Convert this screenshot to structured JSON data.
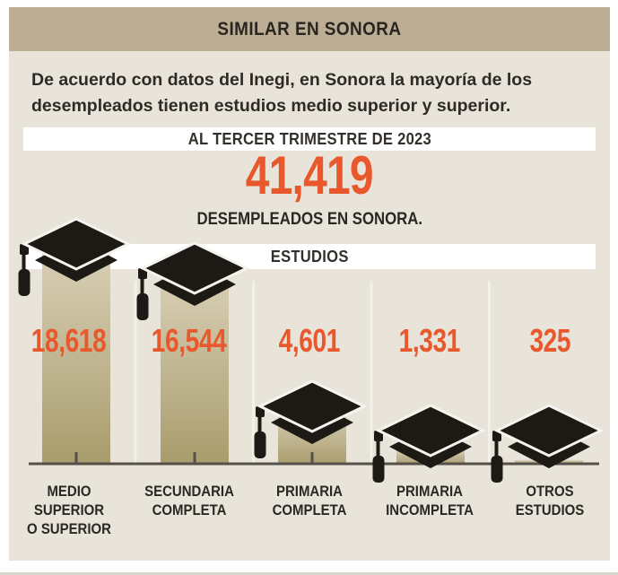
{
  "header": {
    "title": "SIMILAR EN SONORA"
  },
  "intro": {
    "line1": "De acuerdo con datos del Inegi, en Sonora la mayoría de los",
    "line2": "desempleados tienen estudios medio superior y superior."
  },
  "period_banner": "AL TERCER TRIMESTRE DE 2023",
  "total": {
    "value": "41,419",
    "caption": "DESEMPLEADOS EN SONORA."
  },
  "section_banner": "ESTUDIOS",
  "colors": {
    "accent_orange": "#e8582c",
    "header_band": "#bcae94",
    "content_background": "#e8e4da",
    "bar_gradient_top": "#d9d0b7",
    "bar_gradient_bottom": "#a89c6c",
    "axis": "#55504a",
    "cap_black": "#1d1915",
    "banner_white": "#ffffff",
    "text_dark": "#2b2724"
  },
  "icons": {
    "bar_topper": "graduation-cap-icon"
  },
  "chart_data": {
    "type": "bar",
    "title": "ESTUDIOS",
    "categories": [
      "MEDIO SUPERIOR O SUPERIOR",
      "SECUNDARIA COMPLETA",
      "PRIMARIA COMPLETA",
      "PRIMARIA INCOMPLETA",
      "OTROS ESTUDIOS"
    ],
    "categories_lines": [
      [
        "MEDIO",
        "SUPERIOR",
        "O SUPERIOR"
      ],
      [
        "SECUNDARIA",
        "COMPLETA"
      ],
      [
        "PRIMARIA",
        "COMPLETA"
      ],
      [
        "PRIMARIA",
        "INCOMPLETA"
      ],
      [
        "OTROS",
        "ESTUDIOS"
      ]
    ],
    "values": [
      18618,
      16544,
      4601,
      1331,
      325
    ],
    "values_display": [
      "18,618",
      "16,544",
      "4,601",
      "1,331",
      "325"
    ],
    "xlabel": "",
    "ylabel": "",
    "ylim": [
      0,
      18618
    ],
    "grid": false,
    "legend": false
  }
}
